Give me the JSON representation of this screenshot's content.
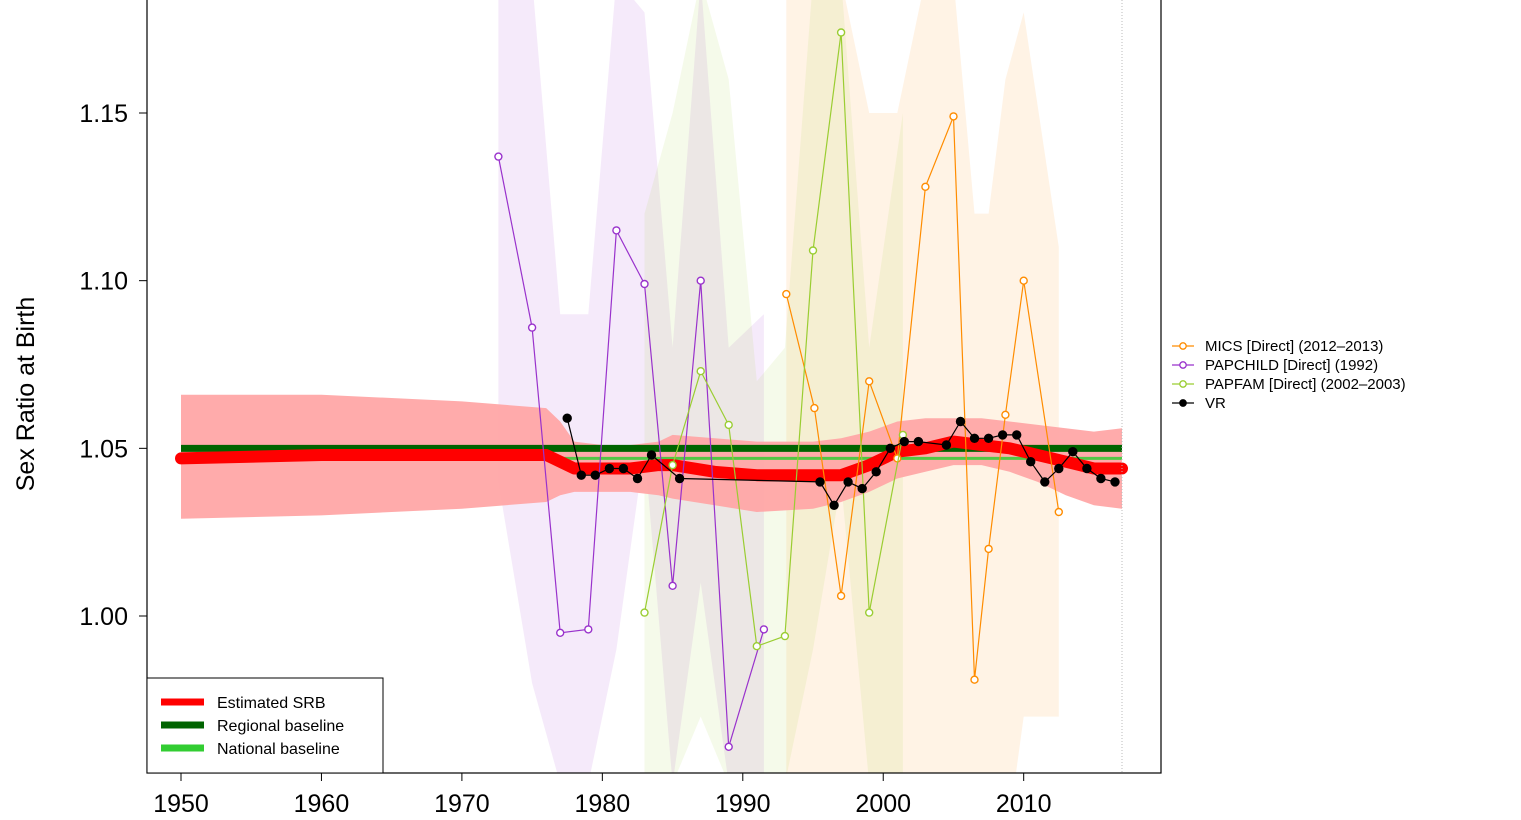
{
  "chart_data": {
    "type": "line",
    "title": "",
    "xlabel": "",
    "ylabel": "Sex Ratio at Birth",
    "xlim": [
      1944.3,
      1963.9
    ],
    "ylim": [
      0.955,
      1.18
    ],
    "x_ticks": [
      "1950",
      "1960",
      "1970",
      "1980",
      "1990",
      "2000",
      "2010"
    ],
    "y_ticks": [
      "1.00",
      "1.05",
      "1.10",
      "1.15"
    ],
    "grid": false,
    "colors": {
      "estimate": "#ff0000",
      "estimate_band": "#ffa6a6",
      "regional_baseline": "#006400",
      "national_baseline": "#32cd32",
      "mics": "#ff8c00",
      "papchild": "#9932cc",
      "papfam": "#9acd32",
      "vr": "#000000"
    },
    "estimate": {
      "x": [
        1950,
        1960,
        1970,
        1976,
        1977,
        1978,
        1980,
        1982,
        1984,
        1985,
        1988,
        1991,
        1995,
        1997,
        1999,
        2001,
        2003,
        2005,
        2007,
        2009,
        2011,
        2013,
        2015,
        2017
      ],
      "y": [
        1.047,
        1.048,
        1.048,
        1.048,
        1.046,
        1.044,
        1.044,
        1.044,
        1.045,
        1.045,
        1.043,
        1.042,
        1.042,
        1.042,
        1.045,
        1.049,
        1.05,
        1.052,
        1.051,
        1.05,
        1.048,
        1.046,
        1.044,
        1.044
      ],
      "lower": [
        1.029,
        1.03,
        1.032,
        1.034,
        1.036,
        1.037,
        1.037,
        1.037,
        1.036,
        1.035,
        1.033,
        1.031,
        1.032,
        1.034,
        1.037,
        1.041,
        1.043,
        1.045,
        1.045,
        1.043,
        1.04,
        1.036,
        1.033,
        1.032
      ],
      "upper": [
        1.066,
        1.066,
        1.064,
        1.062,
        1.058,
        1.052,
        1.051,
        1.051,
        1.052,
        1.054,
        1.053,
        1.052,
        1.052,
        1.053,
        1.055,
        1.058,
        1.059,
        1.059,
        1.059,
        1.058,
        1.057,
        1.056,
        1.055,
        1.056
      ]
    },
    "regional_baseline": 1.05,
    "national_baseline": 1.047,
    "series": [
      {
        "name": "MICS [Direct] (2012–2013)",
        "x": [
          1993.1,
          1995.1,
          1997.0,
          1999.0,
          2001.0,
          2003.0,
          2005.0,
          2006.5,
          2007.5,
          2008.7,
          2010.0,
          2012.5
        ],
        "y": [
          1.096,
          1.062,
          1.006,
          1.07,
          1.047,
          1.128,
          1.149,
          0.981,
          1.02,
          1.06,
          1.1,
          1.031
        ],
        "lower": [
          0.93,
          0.93,
          0.93,
          0.93,
          0.93,
          0.93,
          0.93,
          0.93,
          0.93,
          0.93,
          0.97,
          0.97
        ],
        "upper": [
          1.19,
          1.19,
          1.19,
          1.15,
          1.15,
          1.19,
          1.19,
          1.12,
          1.12,
          1.16,
          1.18,
          1.11
        ]
      },
      {
        "name": "PAPCHILD [Direct] (1992)",
        "x": [
          1972.6,
          1975.0,
          1977.0,
          1979.0,
          1981.0,
          1983.0,
          1985.0,
          1987.0,
          1989.0,
          1991.5
        ],
        "y": [
          1.137,
          1.086,
          0.995,
          0.996,
          1.115,
          1.099,
          1.009,
          1.1,
          0.961,
          0.996
        ],
        "lower": [
          1.04,
          0.98,
          0.95,
          0.95,
          0.99,
          1.05,
          0.95,
          1.01,
          0.95,
          0.95
        ],
        "upper": [
          1.19,
          1.19,
          1.09,
          1.09,
          1.19,
          1.18,
          1.08,
          1.19,
          1.08,
          1.09
        ]
      },
      {
        "name": "PAPFAM [Direct] (2002–2003)",
        "x": [
          1983.0,
          1985.0,
          1987.0,
          1989.0,
          1991.0,
          1993.0,
          1995.0,
          1997.0,
          1999.0,
          2001.4
        ],
        "y": [
          1.001,
          1.045,
          1.073,
          1.057,
          0.991,
          0.994,
          1.109,
          1.174,
          1.001,
          1.054
        ],
        "lower": [
          0.95,
          0.95,
          0.97,
          0.95,
          0.95,
          0.95,
          0.99,
          1.04,
          0.95,
          0.95
        ],
        "upper": [
          1.12,
          1.15,
          1.19,
          1.16,
          1.07,
          1.08,
          1.19,
          1.19,
          1.08,
          1.15
        ]
      },
      {
        "name": "VR",
        "x": [
          1977.5,
          1978.5,
          1979.5,
          1980.5,
          1981.5,
          1982.5,
          1983.5,
          1985.5,
          1995.5,
          1996.5,
          1997.5,
          1998.5,
          1999.5,
          2000.5,
          2001.5,
          2002.5,
          2004.5,
          2005.5,
          2006.5,
          2007.5,
          2008.5,
          2009.5,
          2010.5,
          2011.5,
          2012.5,
          2013.5,
          2014.5,
          2015.5,
          2016.5
        ],
        "y": [
          1.059,
          1.042,
          1.042,
          1.044,
          1.044,
          1.041,
          1.048,
          1.041,
          1.04,
          1.033,
          1.04,
          1.038,
          1.043,
          1.05,
          1.052,
          1.052,
          1.051,
          1.058,
          1.053,
          1.053,
          1.054,
          1.054,
          1.046,
          1.04,
          1.044,
          1.049,
          1.044,
          1.041,
          1.04
        ]
      }
    ],
    "legend_topright": [
      "MICS [Direct] (2012–2013)",
      "PAPCHILD [Direct] (1992)",
      "PAPFAM [Direct] (2002–2003)",
      "VR"
    ],
    "legend_bottomleft": [
      "Estimated SRB",
      "Regional baseline",
      "National baseline"
    ],
    "legend_placement": "outside right (data sources); bottom-left inside plot (estimate and baselines)"
  }
}
